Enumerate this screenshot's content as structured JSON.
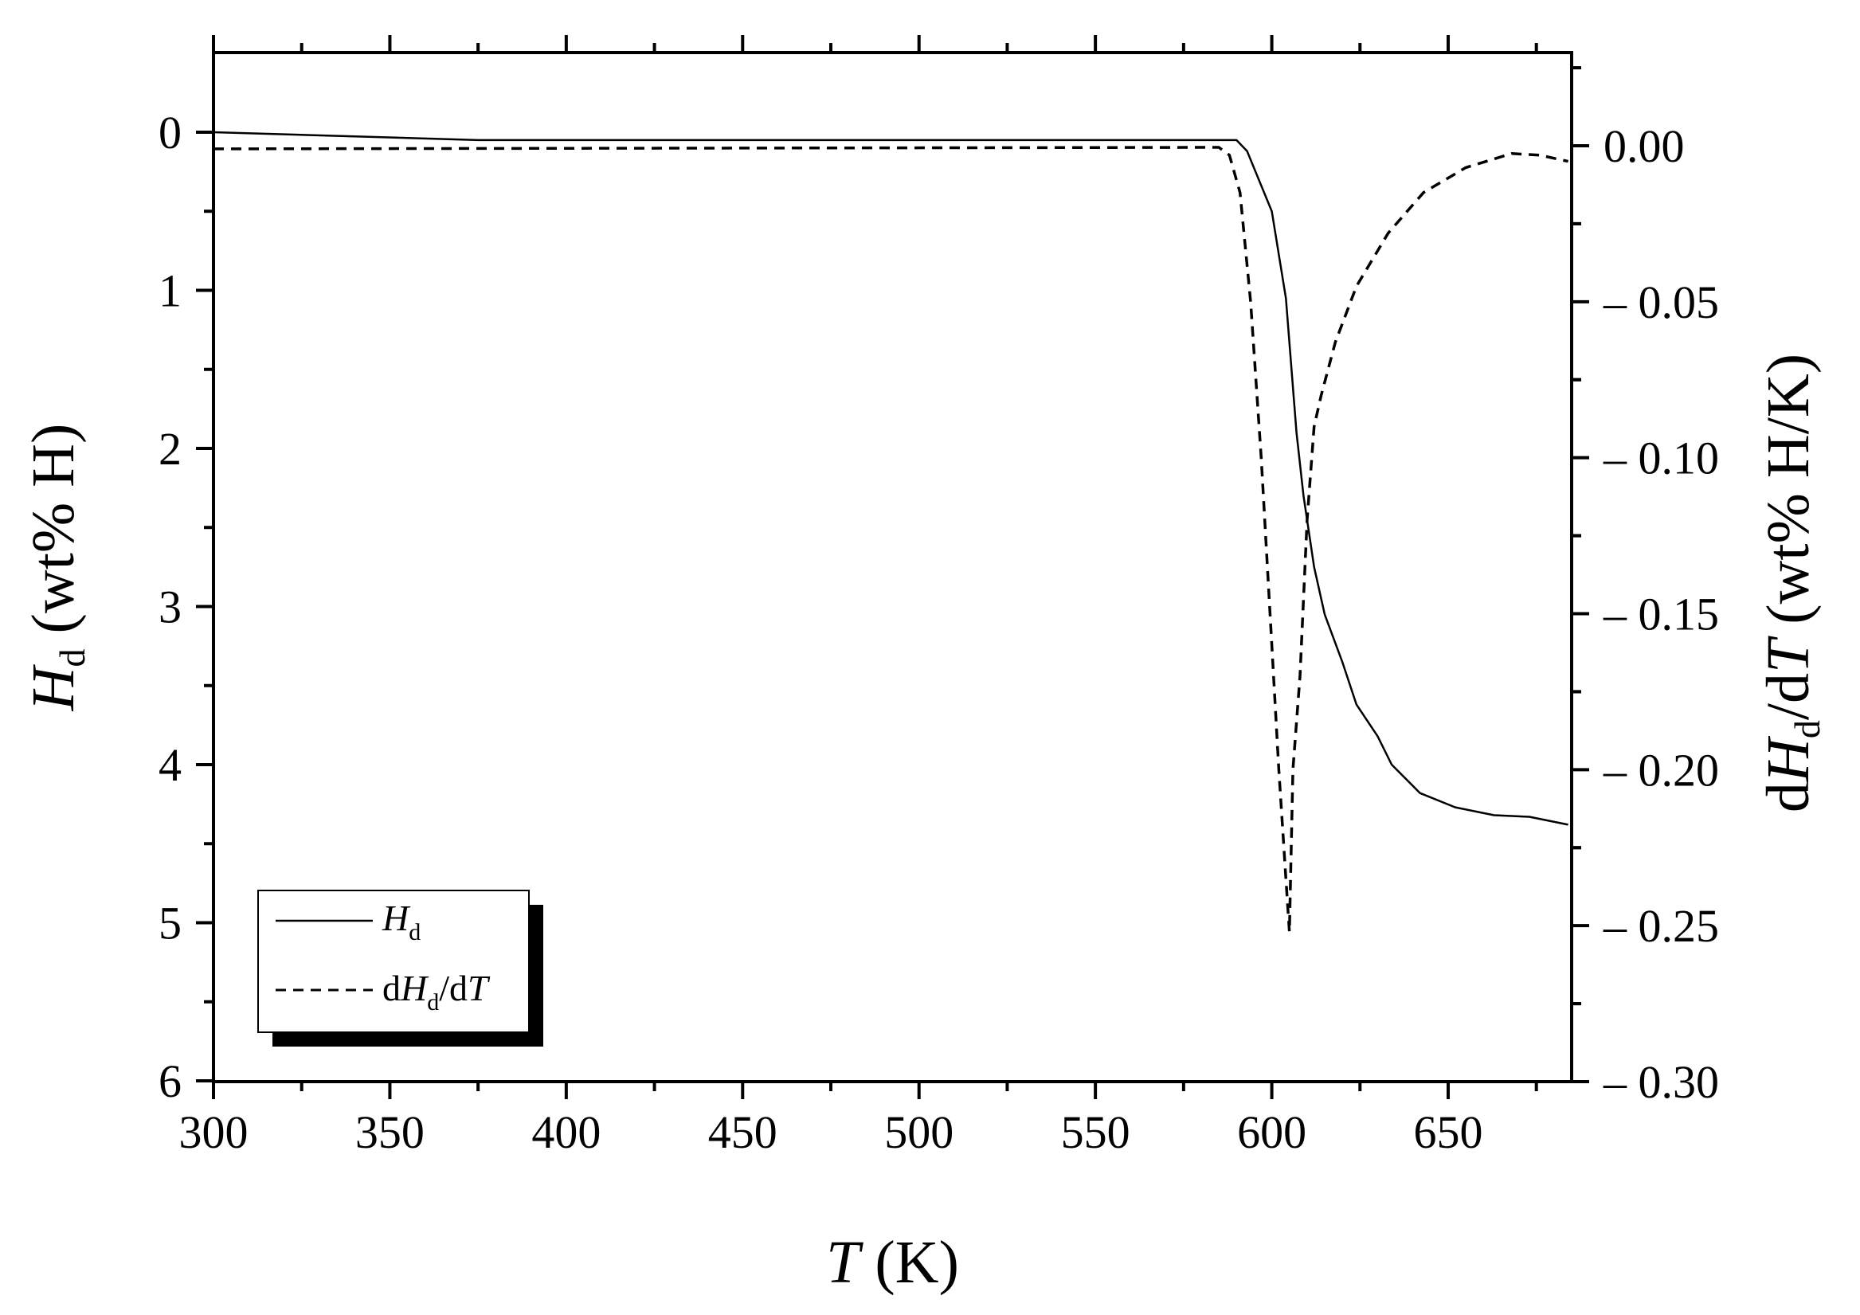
{
  "chart_data": {
    "type": "line",
    "title": "",
    "x_axis": {
      "label_italic": "T",
      "label_rest": " (K)",
      "range": [
        300,
        685
      ],
      "ticks": [
        "300",
        "350",
        "400",
        "450",
        "500",
        "550",
        "600",
        "650"
      ]
    },
    "y_left": {
      "label_italic": "H",
      "label_sub": "d",
      "label_rest": " (wt% H)",
      "range": [
        0,
        6
      ],
      "inverted": true,
      "ticks": [
        "0",
        "1",
        "2",
        "3",
        "4",
        "5",
        "6"
      ]
    },
    "y_right": {
      "label_prefix": "d",
      "label_italic": "H",
      "label_sub": "d",
      "label_mid": "/d",
      "label_italic2": "T",
      "label_rest": " (wt% H/K)",
      "range": [
        0,
        -0.3
      ],
      "ticks": [
        "0.00",
        "– 0.05",
        "– 0.10",
        "– 0.15",
        "– 0.20",
        "– 0.25",
        "– 0.30"
      ]
    },
    "grid": false,
    "legend_position": "bottom-left",
    "series": [
      {
        "name_italic": "H",
        "name_sub": "d",
        "style": "solid",
        "axis": "left",
        "x": [
          300,
          375,
          590,
          593,
          600,
          604,
          607,
          609,
          612,
          615,
          620,
          624,
          630,
          634,
          642,
          652,
          663,
          673,
          684
        ],
        "y": [
          0.0,
          0.05,
          0.05,
          0.12,
          0.5,
          1.05,
          1.9,
          2.3,
          2.75,
          3.05,
          3.35,
          3.62,
          3.82,
          4.0,
          4.18,
          4.27,
          4.32,
          4.33,
          4.38
        ]
      },
      {
        "name_prefix": "d",
        "name_italic": "H",
        "name_sub": "d",
        "name_mid": "/d",
        "name_italic2": "T",
        "style": "dashed",
        "axis": "right",
        "x": [
          300,
          585,
          588,
          591,
          594,
          597,
          600,
          602,
          604,
          605,
          606,
          608,
          610,
          612,
          614,
          618,
          624,
          633,
          643,
          655,
          668,
          676,
          684
        ],
        "y": [
          -0.001,
          -0.0005,
          -0.003,
          -0.015,
          -0.05,
          -0.1,
          -0.16,
          -0.2,
          -0.235,
          -0.252,
          -0.2,
          -0.17,
          -0.12,
          -0.09,
          -0.08,
          -0.063,
          -0.045,
          -0.028,
          -0.015,
          -0.007,
          -0.0025,
          -0.003,
          -0.005
        ]
      }
    ]
  }
}
